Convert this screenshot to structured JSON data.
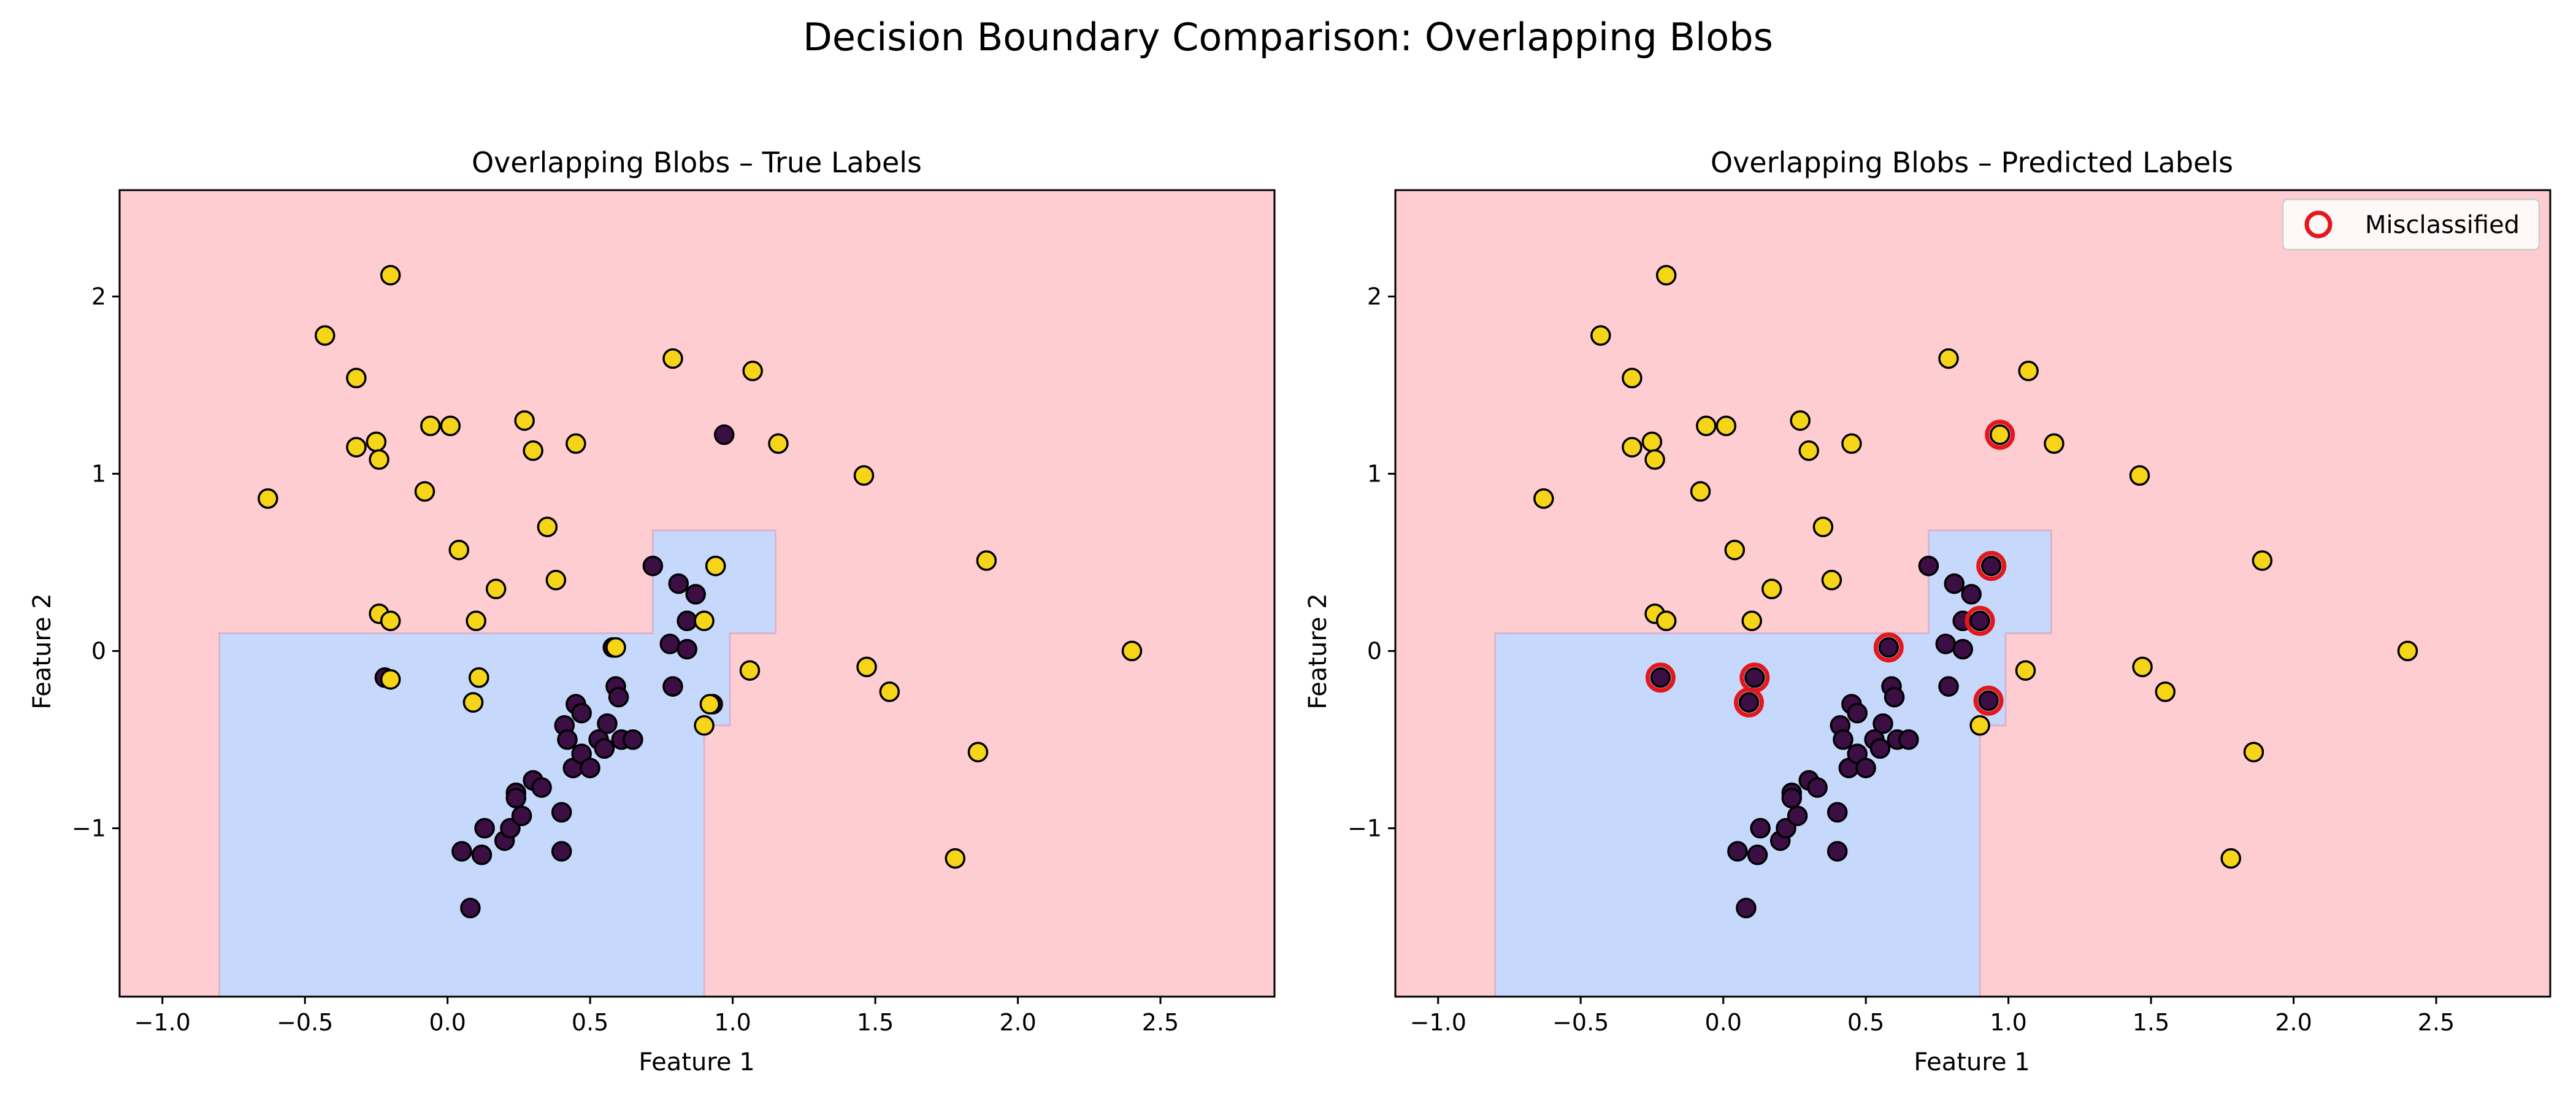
{
  "figure": {
    "suptitle": "Decision Boundary Comparison: Overlapping Blobs"
  },
  "colors": {
    "region_class0": "#c6d9fc",
    "region_class1": "#fecdd1",
    "boundary_line": "#d8b4cf",
    "class0_point": "#3b0f44",
    "class1_point": "#f6d417",
    "point_edge": "#000000",
    "misclassified_ring": "#e4171c"
  },
  "chart_data": [
    {
      "type": "scatter",
      "title": "Overlapping Blobs – True Labels",
      "xlabel": "Feature 1",
      "ylabel": "Feature 2",
      "xlim": [
        -1.15,
        2.9
      ],
      "ylim": [
        -1.95,
        2.6
      ],
      "xticks": [
        -1.0,
        -0.5,
        0.0,
        0.5,
        1.0,
        1.5,
        2.0,
        2.5
      ],
      "xtick_labels": [
        "−1.0",
        "−0.5",
        "0.0",
        "0.5",
        "1.0",
        "1.5",
        "2.0",
        "2.5"
      ],
      "yticks": [
        -1,
        0,
        1,
        2
      ],
      "ytick_labels": [
        "−1",
        "0",
        "1",
        "2"
      ],
      "grid": false,
      "class0_region_polygon": [
        [
          -0.8,
          -1.95
        ],
        [
          -0.8,
          0.1
        ],
        [
          0.72,
          0.1
        ],
        [
          0.72,
          0.68
        ],
        [
          1.15,
          0.68
        ],
        [
          1.15,
          0.1
        ],
        [
          0.99,
          0.1
        ],
        [
          0.99,
          -0.42
        ],
        [
          0.9,
          -0.42
        ],
        [
          0.9,
          -1.95
        ]
      ],
      "series": [
        {
          "class": 0,
          "points": [
            [
              -0.22,
              -0.15
            ],
            [
              0.05,
              -1.13
            ],
            [
              0.08,
              -1.45
            ],
            [
              0.09,
              -0.29
            ],
            [
              0.11,
              -0.15
            ],
            [
              0.12,
              -1.15
            ],
            [
              0.13,
              -1.0
            ],
            [
              0.2,
              -1.07
            ],
            [
              0.22,
              -1.0
            ],
            [
              0.24,
              -0.8
            ],
            [
              0.24,
              -0.83
            ],
            [
              0.26,
              -0.93
            ],
            [
              0.3,
              -0.73
            ],
            [
              0.33,
              -0.77
            ],
            [
              0.4,
              -1.13
            ],
            [
              0.4,
              -0.91
            ],
            [
              0.41,
              -0.42
            ],
            [
              0.42,
              -0.5
            ],
            [
              0.44,
              -0.66
            ],
            [
              0.45,
              -0.3
            ],
            [
              0.47,
              -0.58
            ],
            [
              0.47,
              -0.35
            ],
            [
              0.5,
              -0.66
            ],
            [
              0.53,
              -0.5
            ],
            [
              0.55,
              -0.55
            ],
            [
              0.56,
              -0.41
            ],
            [
              0.58,
              0.02
            ],
            [
              0.59,
              -0.2
            ],
            [
              0.6,
              -0.26
            ],
            [
              0.61,
              -0.5
            ],
            [
              0.65,
              -0.5
            ],
            [
              0.72,
              0.48
            ],
            [
              0.78,
              0.04
            ],
            [
              0.79,
              -0.2
            ],
            [
              0.81,
              0.38
            ],
            [
              0.84,
              0.01
            ],
            [
              0.84,
              0.17
            ],
            [
              0.87,
              0.32
            ],
            [
              0.93,
              -0.3
            ],
            [
              0.94,
              0.48
            ],
            [
              0.97,
              1.22
            ]
          ]
        },
        {
          "class": 1,
          "points": [
            [
              -0.63,
              0.86
            ],
            [
              -0.43,
              1.78
            ],
            [
              -0.32,
              1.54
            ],
            [
              -0.32,
              1.15
            ],
            [
              -0.25,
              1.18
            ],
            [
              -0.24,
              1.08
            ],
            [
              -0.24,
              0.21
            ],
            [
              -0.2,
              2.12
            ],
            [
              -0.2,
              0.17
            ],
            [
              -0.2,
              -0.16
            ],
            [
              -0.08,
              0.9
            ],
            [
              -0.06,
              1.27
            ],
            [
              0.01,
              1.27
            ],
            [
              0.04,
              0.57
            ],
            [
              0.09,
              -0.29
            ],
            [
              0.1,
              0.17
            ],
            [
              0.11,
              -0.15
            ],
            [
              0.17,
              0.35
            ],
            [
              0.27,
              1.3
            ],
            [
              0.3,
              1.13
            ],
            [
              0.35,
              0.7
            ],
            [
              0.38,
              0.4
            ],
            [
              0.45,
              1.17
            ],
            [
              0.59,
              0.02
            ],
            [
              0.79,
              1.65
            ],
            [
              0.9,
              0.17
            ],
            [
              0.9,
              -0.42
            ],
            [
              0.92,
              -0.3
            ],
            [
              0.94,
              0.48
            ],
            [
              1.06,
              -0.11
            ],
            [
              1.07,
              1.58
            ],
            [
              1.16,
              1.17
            ],
            [
              1.46,
              0.99
            ],
            [
              1.47,
              -0.09
            ],
            [
              1.55,
              -0.23
            ],
            [
              1.86,
              -0.57
            ],
            [
              1.89,
              0.51
            ],
            [
              1.78,
              -1.17
            ],
            [
              2.4,
              0.0
            ]
          ]
        }
      ]
    },
    {
      "type": "scatter",
      "title": "Overlapping Blobs – Predicted Labels",
      "xlabel": "Feature 1",
      "ylabel": "Feature 2",
      "xlim": [
        -1.15,
        2.9
      ],
      "ylim": [
        -1.95,
        2.6
      ],
      "xticks": [
        -1.0,
        -0.5,
        0.0,
        0.5,
        1.0,
        1.5,
        2.0,
        2.5
      ],
      "xtick_labels": [
        "−1.0",
        "−0.5",
        "0.0",
        "0.5",
        "1.0",
        "1.5",
        "2.0",
        "2.5"
      ],
      "yticks": [
        -1,
        0,
        1,
        2
      ],
      "ytick_labels": [
        "−1",
        "0",
        "1",
        "2"
      ],
      "grid": false,
      "legend": {
        "position": "top-right",
        "entries": [
          "Misclassified"
        ]
      },
      "class0_region_polygon": [
        [
          -0.8,
          -1.95
        ],
        [
          -0.8,
          0.1
        ],
        [
          0.72,
          0.1
        ],
        [
          0.72,
          0.68
        ],
        [
          1.15,
          0.68
        ],
        [
          1.15,
          0.1
        ],
        [
          0.99,
          0.1
        ],
        [
          0.99,
          -0.42
        ],
        [
          0.9,
          -0.42
        ],
        [
          0.9,
          -1.95
        ]
      ],
      "series": [
        {
          "class": 0,
          "points": [
            [
              -0.22,
              -0.15
            ],
            [
              0.05,
              -1.13
            ],
            [
              0.08,
              -1.45
            ],
            [
              0.09,
              -0.29
            ],
            [
              0.11,
              -0.15
            ],
            [
              0.12,
              -1.15
            ],
            [
              0.13,
              -1.0
            ],
            [
              0.2,
              -1.07
            ],
            [
              0.22,
              -1.0
            ],
            [
              0.24,
              -0.8
            ],
            [
              0.24,
              -0.83
            ],
            [
              0.26,
              -0.93
            ],
            [
              0.3,
              -0.73
            ],
            [
              0.33,
              -0.77
            ],
            [
              0.4,
              -1.13
            ],
            [
              0.4,
              -0.91
            ],
            [
              0.41,
              -0.42
            ],
            [
              0.42,
              -0.5
            ],
            [
              0.44,
              -0.66
            ],
            [
              0.45,
              -0.3
            ],
            [
              0.47,
              -0.58
            ],
            [
              0.47,
              -0.35
            ],
            [
              0.5,
              -0.66
            ],
            [
              0.53,
              -0.5
            ],
            [
              0.55,
              -0.55
            ],
            [
              0.56,
              -0.41
            ],
            [
              0.58,
              0.02
            ],
            [
              0.59,
              -0.2
            ],
            [
              0.6,
              -0.26
            ],
            [
              0.61,
              -0.5
            ],
            [
              0.65,
              -0.5
            ],
            [
              0.72,
              0.48
            ],
            [
              0.78,
              0.04
            ],
            [
              0.79,
              -0.2
            ],
            [
              0.81,
              0.38
            ],
            [
              0.84,
              0.01
            ],
            [
              0.84,
              0.17
            ],
            [
              0.87,
              0.32
            ],
            [
              0.9,
              0.17
            ],
            [
              0.93,
              -0.28
            ],
            [
              0.94,
              0.48
            ]
          ]
        },
        {
          "class": 1,
          "points": [
            [
              -0.63,
              0.86
            ],
            [
              -0.43,
              1.78
            ],
            [
              -0.32,
              1.54
            ],
            [
              -0.32,
              1.15
            ],
            [
              -0.25,
              1.18
            ],
            [
              -0.24,
              1.08
            ],
            [
              -0.24,
              0.21
            ],
            [
              -0.2,
              2.12
            ],
            [
              -0.2,
              0.17
            ],
            [
              -0.08,
              0.9
            ],
            [
              -0.06,
              1.27
            ],
            [
              0.01,
              1.27
            ],
            [
              0.04,
              0.57
            ],
            [
              0.1,
              0.17
            ],
            [
              0.17,
              0.35
            ],
            [
              0.27,
              1.3
            ],
            [
              0.3,
              1.13
            ],
            [
              0.35,
              0.7
            ],
            [
              0.38,
              0.4
            ],
            [
              0.45,
              1.17
            ],
            [
              0.79,
              1.65
            ],
            [
              0.9,
              -0.42
            ],
            [
              0.97,
              1.22
            ],
            [
              1.06,
              -0.11
            ],
            [
              1.07,
              1.58
            ],
            [
              1.16,
              1.17
            ],
            [
              1.46,
              0.99
            ],
            [
              1.47,
              -0.09
            ],
            [
              1.55,
              -0.23
            ],
            [
              1.86,
              -0.57
            ],
            [
              1.89,
              0.51
            ],
            [
              1.78,
              -1.17
            ],
            [
              2.4,
              0.0
            ]
          ]
        },
        {
          "name": "Misclassified",
          "points": [
            [
              -0.22,
              -0.15
            ],
            [
              0.09,
              -0.29
            ],
            [
              0.11,
              -0.15
            ],
            [
              0.58,
              0.02
            ],
            [
              0.9,
              0.17
            ],
            [
              0.93,
              -0.28
            ],
            [
              0.94,
              0.48
            ],
            [
              0.97,
              1.22
            ]
          ]
        }
      ]
    }
  ]
}
